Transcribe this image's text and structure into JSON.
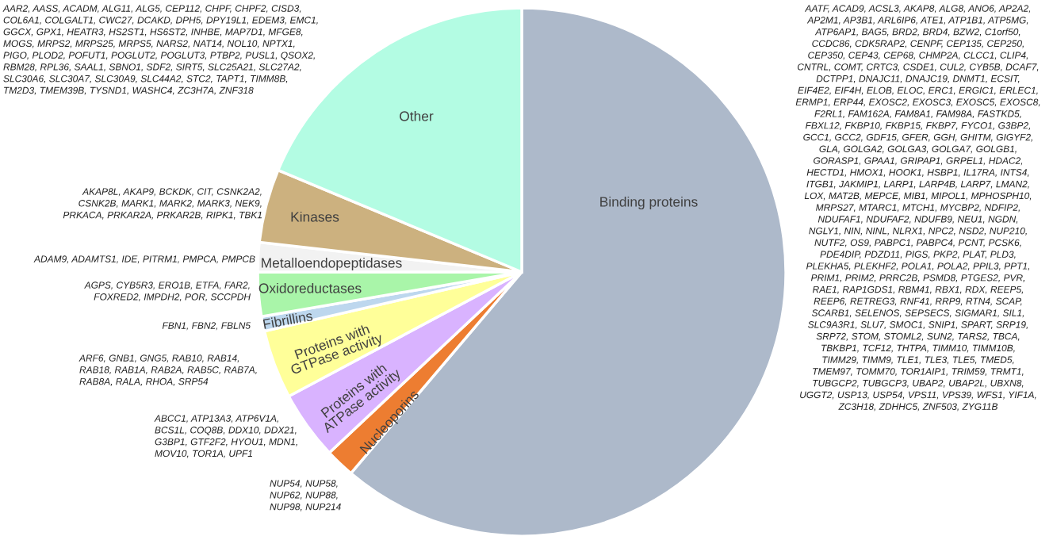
{
  "chart_data": {
    "type": "pie",
    "categories": [
      "Binding proteins",
      "Nucleoporins",
      "Proteins with\nATPase activity",
      "Proteins with\nGTPase activity",
      "Fibrillins",
      "Oxidoreductases",
      "Metalloendopeptidases",
      "Kinases",
      "Other"
    ],
    "values": [
      61.2,
      1.8,
      4.2,
      4.2,
      0.9,
      2.7,
      1.8,
      4.5,
      18.7
    ],
    "colors": [
      "#adb9ca",
      "#ed7d31",
      "#d9b3ff",
      "#ffff99",
      "#bdd7ee",
      "#a9f5a9",
      "#f2f2f2",
      "#ccb17f",
      "#b3fce3"
    ],
    "legend": false,
    "annotations": [
      "AAR2, AASS, ACADM, ALG11, ALG5, CEP112, CHPF, CHPF2, CISD3,\nCOL6A1, COLGALT1, CWC27, DCAKD, DPH5, DPY19L1, EDEM3, EMC1,\nGGCX, GPX1, HEATR3, HS2ST1, HS6ST2, INHBE, MAP7D1, MFGE8,\nMOGS, MRPS2, MRPS25, MRPS5, NARS2, NAT14, NOL10, NPTX1,\nPIGO, PLOD2, POFUT1, POGLUT2, POGLUT3, PTBP2, PUSL1, QSOX2,\nRBM28, RPL36, SAAL1, SBNO1, SDF2, SIRT5, SLC25A21, SLC27A2,\nSLC30A6, SLC30A7, SLC30A9, SLC44A2, STC2, TAPT1, TIMM8B,\nTM2D3, TMEM39B, TYSND1, WASHC4, ZC3H7A, ZNF318",
      "AATF, ACAD9, ACSL3, AKAP8, ALG8, ANO6, AP2A2,\nAP2M1, AP3B1, ARL6IP6, ATE1, ATP1B1, ATP5MG,\nATP6AP1, BAG5, BRD2, BRD4, BZW2, C1orf50,\nCCDC86, CDK5RAP2, CENPF, CEP135, CEP250,\nCEP350, CEP43, CEP68, CHMP2A, CLCC1, CLIP4,\nCNTRL, COMT, CRTC3, CSDE1, CUL2, CYB5B, DCAF7,\nDCTPP1, DNAJC11, DNAJC19, DNMT1, ECSIT,\nEIF4E2, EIF4H, ELOB, ELOC, ERC1, ERGIC1, ERLEC1,\nERMP1, ERP44, EXOSC2, EXOSC3, EXOSC5, EXOSC8,\nF2RL1, FAM162A, FAM8A1, FAM98A, FASTKD5,\nFBXL12, FKBP10, FKBP15, FKBP7, FYCO1, G3BP2,\nGCC1, GCC2, GDF15, GFER, GGH, GHITM, GIGYF2,\nGLA, GOLGA2, GOLGA3, GOLGA7, GOLGB1,\nGORASP1, GPAA1, GRIPAP1, GRPEL1, HDAC2,\nHECTD1, HMOX1, HOOK1, HSBP1, IL17RA, INTS4,\nITGB1, JAKMIP1, LARP1, LARP4B, LARP7, LMAN2,\nLOX, MAT2B, MEPCE, MIB1, MIPOL1, MPHOSPH10,\nMRPS27, MTARC1, MTCH1, MYCBP2, NDFIP2,\nNDUFAF1, NDUFAF2, NDUFB9, NEU1, NGDN,\nNGLY1, NIN, NINL, NLRX1, NPC2, NSD2, NUP210,\nNUTF2, OS9, PABPC1, PABPC4, PCNT, PCSK6,\nPDE4DIP, PDZD11, PIGS, PKP2, PLAT, PLD3,\nPLEKHA5, PLEKHF2, POLA1, POLA2, PPIL3, PPT1,\nPRIM1, PRIM2, PRRC2B, PSMD8, PTGES2, PVR,\nRAE1, RAP1GDS1, RBM41, RBX1, RDX, REEP5,\nREEP6, RETREG3, RNF41, RRP9, RTN4, SCAP,\nSCARB1, SELENOS, SEPSECS, SIGMAR1, SIL1,\nSLC9A3R1, SLU7, SMOC1, SNIP1, SPART, SRP19,\nSRP72, STOM, STOML2, SUN2, TARS2, TBCA,\nTBKBP1, TCF12, THTPA, TIMM10, TIMM10B,\nTIMM29, TIMM9, TLE1, TLE3, TLE5, TMED5,\nTMEM97, TOMM70, TOR1AIP1, TRIM59, TRMT1,\nTUBGCP2, TUBGCP3, UBAP2, UBAP2L, UBXN8,\nUGGT2, USP13, USP54, VPS11, VPS39, WFS1, YIF1A,\nZC3H18, ZDHHC5, ZNF503, ZYG11B",
      "AKAP8L, AKAP9, BCKDK, CIT, CSNK2A2,\nCSNK2B, MARK1, MARK2, MARK3, NEK9,\nPRKACA, PRKAR2A, PRKAR2B, RIPK1, TBK1",
      "ADAM9, ADAMTS1, IDE, PITRM1, PMPCA, PMPCB",
      "AGPS, CYB5R3, ERO1B, ETFA, FAR2,\nFOXRED2, IMPDH2, POR, SCCPDH",
      "FBN1, FBN2, FBLN5",
      "ARF6, GNB1, GNG5, RAB10, RAB14,\nRAB18, RAB1A, RAB2A, RAB5C, RAB7A,\nRAB8A, RALA, RHOA, SRP54",
      "ABCC1, ATP13A3, ATP6V1A,\nBCS1L, COQ8B, DDX10, DDX21,\nG3BP1, GTF2F2, HYOU1, MDN1,\nMOV10, TOR1A, UPF1",
      "NUP54, NUP58,\nNUP62, NUP88,\nNUP98, NUP214"
    ]
  }
}
